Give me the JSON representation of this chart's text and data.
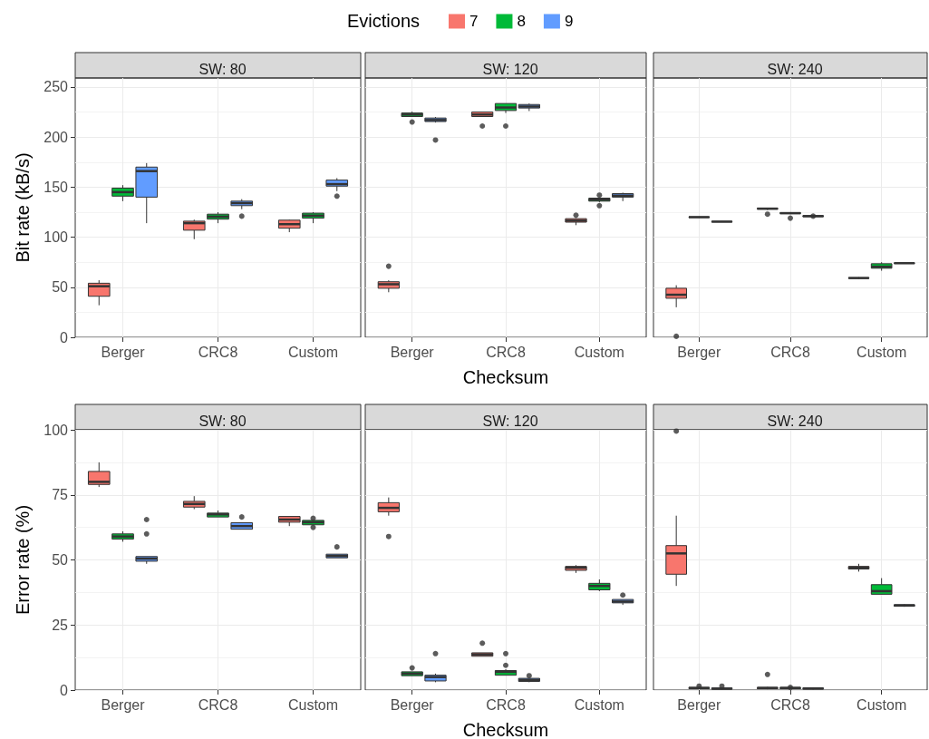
{
  "chart_data": [
    {
      "type": "box",
      "title": "SW: 80",
      "ylabel": "Bit rate (kB/s)",
      "legend_title": "Evictions",
      "legend": "top",
      "grid": true,
      "categories": [
        "Berger",
        "CRC8",
        "Custom"
      ],
      "ylim": [
        0,
        259
      ],
      "yticks": [
        0,
        50,
        100,
        150,
        200,
        250
      ],
      "series": [
        {
          "name": "7",
          "color": "#f8766d",
          "boxes": [
            {
              "low": 32,
              "q1": 41,
              "median": 51,
              "q3": 54,
              "high": 57
            },
            {
              "low": 98,
              "q1": 107,
              "median": 114,
              "q3": 116,
              "high": 117.5
            },
            {
              "low": 105,
              "q1": 109,
              "median": 113,
              "q3": 117,
              "high": 117.5
            }
          ]
        },
        {
          "name": "8",
          "color": "#00ba38",
          "boxes": [
            {
              "low": 136,
              "q1": 141,
              "median": 145,
              "q3": 149,
              "high": 152
            },
            {
              "low": 114,
              "q1": 118,
              "median": 120.5,
              "q3": 123,
              "high": 125
            },
            {
              "low": 114,
              "q1": 119,
              "median": 121.5,
              "q3": 124,
              "high": 125
            }
          ]
        },
        {
          "name": "9",
          "color": "#619cff",
          "boxes": [
            {
              "low": 114,
              "q1": 140,
              "median": 166,
              "q3": 170,
              "high": 174
            },
            {
              "low": 128,
              "q1": 131.5,
              "median": 134,
              "q3": 136,
              "high": 138,
              "outliers": [
                121
              ]
            },
            {
              "low": 146,
              "q1": 151,
              "median": 153,
              "q3": 157,
              "high": 159,
              "outliers": [
                141
              ]
            }
          ]
        }
      ]
    },
    {
      "type": "box",
      "title": "SW: 120",
      "xlabel": "Checksum",
      "grid": true,
      "tick_labels": "x",
      "categories": [
        "Berger",
        "CRC8",
        "Custom"
      ],
      "ylim": [
        0,
        259
      ],
      "yticks": [
        0,
        50,
        100,
        150,
        200,
        250
      ],
      "series": [
        {
          "color": "#f8766d",
          "boxes": [
            {
              "low": 45,
              "q1": 49,
              "median": 53,
              "q3": 55.5,
              "high": 57,
              "outliers": [
                71
              ]
            },
            {
              "low": 220.5,
              "q1": 220.5,
              "median": 222.5,
              "q3": 225,
              "high": 225,
              "outliers": [
                211
              ]
            },
            {
              "low": 112,
              "q1": 115,
              "median": 116.5,
              "q3": 118.5,
              "high": 119,
              "outliers": [
                122
              ]
            }
          ]
        },
        {
          "color": "#00ba38",
          "boxes": [
            {
              "low": 220.5,
              "q1": 220.5,
              "median": 222.5,
              "q3": 224,
              "high": 225.5,
              "outliers": [
                215
              ]
            },
            {
              "low": 224,
              "q1": 226.5,
              "median": 229.5,
              "q3": 233.5,
              "high": 233.5,
              "outliers": [
                211
              ]
            },
            {
              "low": 135,
              "q1": 136,
              "median": 137.5,
              "q3": 139,
              "high": 139.5,
              "outliers": [
                142,
                131.5
              ]
            }
          ]
        },
        {
          "color": "#619cff",
          "boxes": [
            {
              "low": 214.5,
              "q1": 215.5,
              "median": 217,
              "q3": 219,
              "high": 220,
              "outliers": [
                197
              ]
            },
            {
              "low": 226,
              "q1": 229,
              "median": 230.5,
              "q3": 232.5,
              "high": 233.5
            },
            {
              "low": 136,
              "q1": 140,
              "median": 141.5,
              "q3": 143.5,
              "high": 144.5
            }
          ]
        }
      ]
    },
    {
      "type": "box",
      "title": "SW: 240",
      "grid": true,
      "tick_labels": "x",
      "categories": [
        "Berger",
        "CRC8",
        "Custom"
      ],
      "ylim": [
        0,
        259
      ],
      "yticks": [
        0,
        50,
        100,
        150,
        200,
        250
      ],
      "series": [
        {
          "color": "#f8766d",
          "boxes": [
            {
              "low": 30,
              "q1": 39,
              "median": 42.5,
              "q3": 49,
              "high": 52,
              "outliers": [
                1
              ]
            },
            {
              "low": 127,
              "q1": 128,
              "median": 128.5,
              "q3": 129,
              "high": 129.5,
              "outliers": [
                123
              ]
            },
            {
              "low": 58.5,
              "q1": 59,
              "median": 59.2,
              "q3": 59.5,
              "high": 60
            }
          ]
        },
        {
          "color": "#00ba38",
          "boxes": [
            {
              "low": 119.5,
              "q1": 119.7,
              "median": 120,
              "q3": 120.3,
              "high": 120.5
            },
            {
              "low": 123,
              "q1": 123.5,
              "median": 124,
              "q3": 124.5,
              "high": 125,
              "outliers": [
                119
              ]
            },
            {
              "low": 66.5,
              "q1": 69,
              "median": 70.5,
              "q3": 73.5,
              "high": 75
            }
          ]
        },
        {
          "color": "#619cff",
          "boxes": [
            {
              "low": 115,
              "q1": 115.3,
              "median": 115.5,
              "q3": 115.8,
              "high": 116
            },
            {
              "low": 120,
              "q1": 120.5,
              "median": 121,
              "q3": 121.5,
              "high": 122,
              "outliers": [
                121
              ]
            },
            {
              "low": 73.5,
              "q1": 73.8,
              "median": 74,
              "q3": 74.3,
              "high": 74.5
            }
          ]
        }
      ]
    },
    {
      "type": "box",
      "title": "SW: 80",
      "ylabel": "Error rate (%)",
      "grid": true,
      "categories": [
        "Berger",
        "CRC8",
        "Custom"
      ],
      "ylim": [
        0,
        100
      ],
      "yticks": [
        0,
        25,
        50,
        75,
        100
      ],
      "series": [
        {
          "color": "#f8766d",
          "boxes": [
            {
              "low": 78,
              "q1": 79,
              "median": 80,
              "q3": 84,
              "high": 87.5
            },
            {
              "low": 69.5,
              "q1": 70.3,
              "median": 71.5,
              "q3": 72.5,
              "high": 74.5
            },
            {
              "low": 63,
              "q1": 64.5,
              "median": 65.5,
              "q3": 66.7,
              "high": 66.7
            }
          ]
        },
        {
          "color": "#00ba38",
          "boxes": [
            {
              "low": 57,
              "q1": 58,
              "median": 59,
              "q3": 60,
              "high": 61
            },
            {
              "low": 66.5,
              "q1": 66.5,
              "median": 67.5,
              "q3": 68,
              "high": 69
            },
            {
              "low": 63.5,
              "q1": 63.5,
              "median": 64.5,
              "q3": 65.2,
              "high": 65.2,
              "outliers": [
                66,
                62.5
              ]
            }
          ]
        },
        {
          "color": "#619cff",
          "boxes": [
            {
              "low": 48.5,
              "q1": 49.5,
              "median": 50.5,
              "q3": 51.3,
              "high": 51.3,
              "outliers": [
                65.5,
                60
              ]
            },
            {
              "low": 61.8,
              "q1": 61.8,
              "median": 63,
              "q3": 64.3,
              "high": 64.3,
              "outliers": [
                66.5
              ]
            },
            {
              "low": 50.8,
              "q1": 50.8,
              "median": 51.5,
              "q3": 52.2,
              "high": 52.2,
              "outliers": [
                55
              ]
            }
          ]
        }
      ]
    },
    {
      "type": "box",
      "title": "SW: 120",
      "xlabel": "Checksum",
      "grid": true,
      "tick_labels": "x",
      "categories": [
        "Berger",
        "CRC8",
        "Custom"
      ],
      "ylim": [
        0,
        100
      ],
      "yticks": [
        0,
        25,
        50,
        75,
        100
      ],
      "series": [
        {
          "color": "#f8766d",
          "boxes": [
            {
              "low": 67,
              "q1": 68.5,
              "median": 70,
              "q3": 72,
              "high": 74,
              "outliers": [
                59
              ]
            },
            {
              "low": 13,
              "q1": 13,
              "median": 13.7,
              "q3": 14.3,
              "high": 14.3,
              "outliers": [
                18
              ]
            },
            {
              "low": 45,
              "q1": 46,
              "median": 47,
              "q3": 47.5,
              "high": 48
            }
          ]
        },
        {
          "color": "#00ba38",
          "boxes": [
            {
              "low": 5.5,
              "q1": 5.5,
              "median": 6.3,
              "q3": 7,
              "high": 7,
              "outliers": [
                8.5
              ]
            },
            {
              "low": 5.7,
              "q1": 5.7,
              "median": 7,
              "q3": 7.5,
              "high": 8,
              "outliers": [
                9.5,
                14
              ]
            },
            {
              "low": 38,
              "q1": 38.5,
              "median": 40,
              "q3": 41,
              "high": 42.5
            }
          ]
        },
        {
          "color": "#619cff",
          "boxes": [
            {
              "low": 3,
              "q1": 3.5,
              "median": 5,
              "q3": 5.7,
              "high": 6.3,
              "outliers": [
                14
              ]
            },
            {
              "low": 3,
              "q1": 3.3,
              "median": 3.9,
              "q3": 4.5,
              "high": 4.5,
              "outliers": [
                5.5
              ]
            },
            {
              "low": 32.7,
              "q1": 33.5,
              "median": 34,
              "q3": 34.8,
              "high": 34.8,
              "outliers": [
                36.5
              ]
            }
          ]
        }
      ]
    },
    {
      "type": "box",
      "title": "SW: 240",
      "grid": true,
      "tick_labels": "x",
      "categories": [
        "Berger",
        "CRC8",
        "Custom"
      ],
      "ylim": [
        0,
        100
      ],
      "yticks": [
        0,
        25,
        50,
        75,
        100
      ],
      "series": [
        {
          "color": "#f8766d",
          "boxes": [
            {
              "low": 40,
              "q1": 44.5,
              "median": 52.5,
              "q3": 55.5,
              "high": 67,
              "outliers": [
                99.5
              ]
            },
            {
              "low": 0.3,
              "q1": 0.5,
              "median": 0.8,
              "q3": 1,
              "high": 1.2,
              "outliers": [
                6
              ]
            },
            {
              "low": 45.5,
              "q1": 46.5,
              "median": 47,
              "q3": 47.5,
              "high": 48.5
            }
          ]
        },
        {
          "color": "#00ba38",
          "boxes": [
            {
              "low": 0.3,
              "q1": 0.5,
              "median": 0.8,
              "q3": 1,
              "high": 1.2,
              "outliers": [
                1.5
              ]
            },
            {
              "low": 0.3,
              "q1": 0.5,
              "median": 0.8,
              "q3": 1,
              "high": 1.2,
              "outliers": [
                1
              ]
            },
            {
              "low": 36.8,
              "q1": 36.8,
              "median": 38,
              "q3": 40.5,
              "high": 43
            }
          ]
        },
        {
          "color": "#619cff",
          "boxes": [
            {
              "low": 0.2,
              "q1": 0.4,
              "median": 0.5,
              "q3": 0.8,
              "high": 1,
              "outliers": [
                1.5
              ]
            },
            {
              "low": 0.2,
              "q1": 0.4,
              "median": 0.6,
              "q3": 0.8,
              "high": 1
            },
            {
              "low": 32,
              "q1": 32.2,
              "median": 32.5,
              "q3": 32.8,
              "high": 33
            }
          ]
        }
      ]
    }
  ]
}
